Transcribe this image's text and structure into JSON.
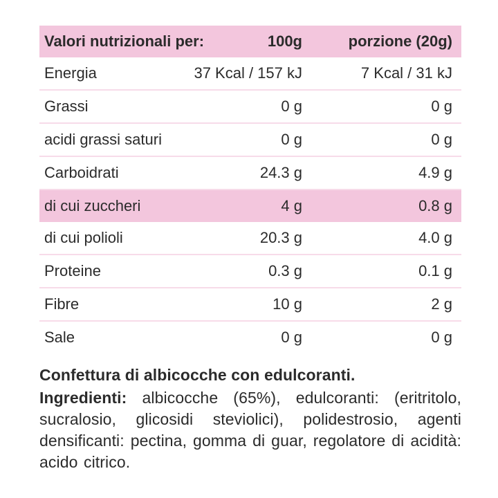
{
  "colors": {
    "header_bg": "#f3c6dd",
    "highlight_bg": "#f3c6dd",
    "separator": "#f7dbe9",
    "text": "#2b2b2b"
  },
  "table": {
    "header": {
      "col1": "Valori nutrizionali per:",
      "col2": "100g",
      "col3": "porzione (20g)"
    },
    "rows": [
      {
        "label": "Energia",
        "per100": "37 Kcal / 157 kJ",
        "portion": "7 Kcal / 31 kJ",
        "highlighted": false
      },
      {
        "label": "Grassi",
        "per100": "0 g",
        "portion": "0 g",
        "highlighted": false
      },
      {
        "label": "acidi grassi saturi",
        "per100": "0 g",
        "portion": "0 g",
        "highlighted": false
      },
      {
        "label": "Carboidrati",
        "per100": "24.3 g",
        "portion": "4.9 g",
        "highlighted": false
      },
      {
        "label": "di cui zuccheri",
        "per100": "4 g",
        "portion": "0.8 g",
        "highlighted": true
      },
      {
        "label": "di cui polioli",
        "per100": "20.3 g",
        "portion": "4.0 g",
        "highlighted": false
      },
      {
        "label": "Proteine",
        "per100": "0.3 g",
        "portion": "0.1 g",
        "highlighted": false
      },
      {
        "label": "Fibre",
        "per100": "10 g",
        "portion": "2 g",
        "highlighted": false
      },
      {
        "label": "Sale",
        "per100": "0 g",
        "portion": "0 g",
        "highlighted": false
      }
    ]
  },
  "description": {
    "title": "Confettura di albicocche con edulcoranti.",
    "ingredients_label": "Ingredienti:",
    "ingredients_text": "albicocche (65%), edulcoranti: (eritritolo, sucralosio, glicosidi steviolici), polidestrosio, agenti densificanti: pectina, gomma di guar, regolatore di acidità: acido citrico."
  }
}
